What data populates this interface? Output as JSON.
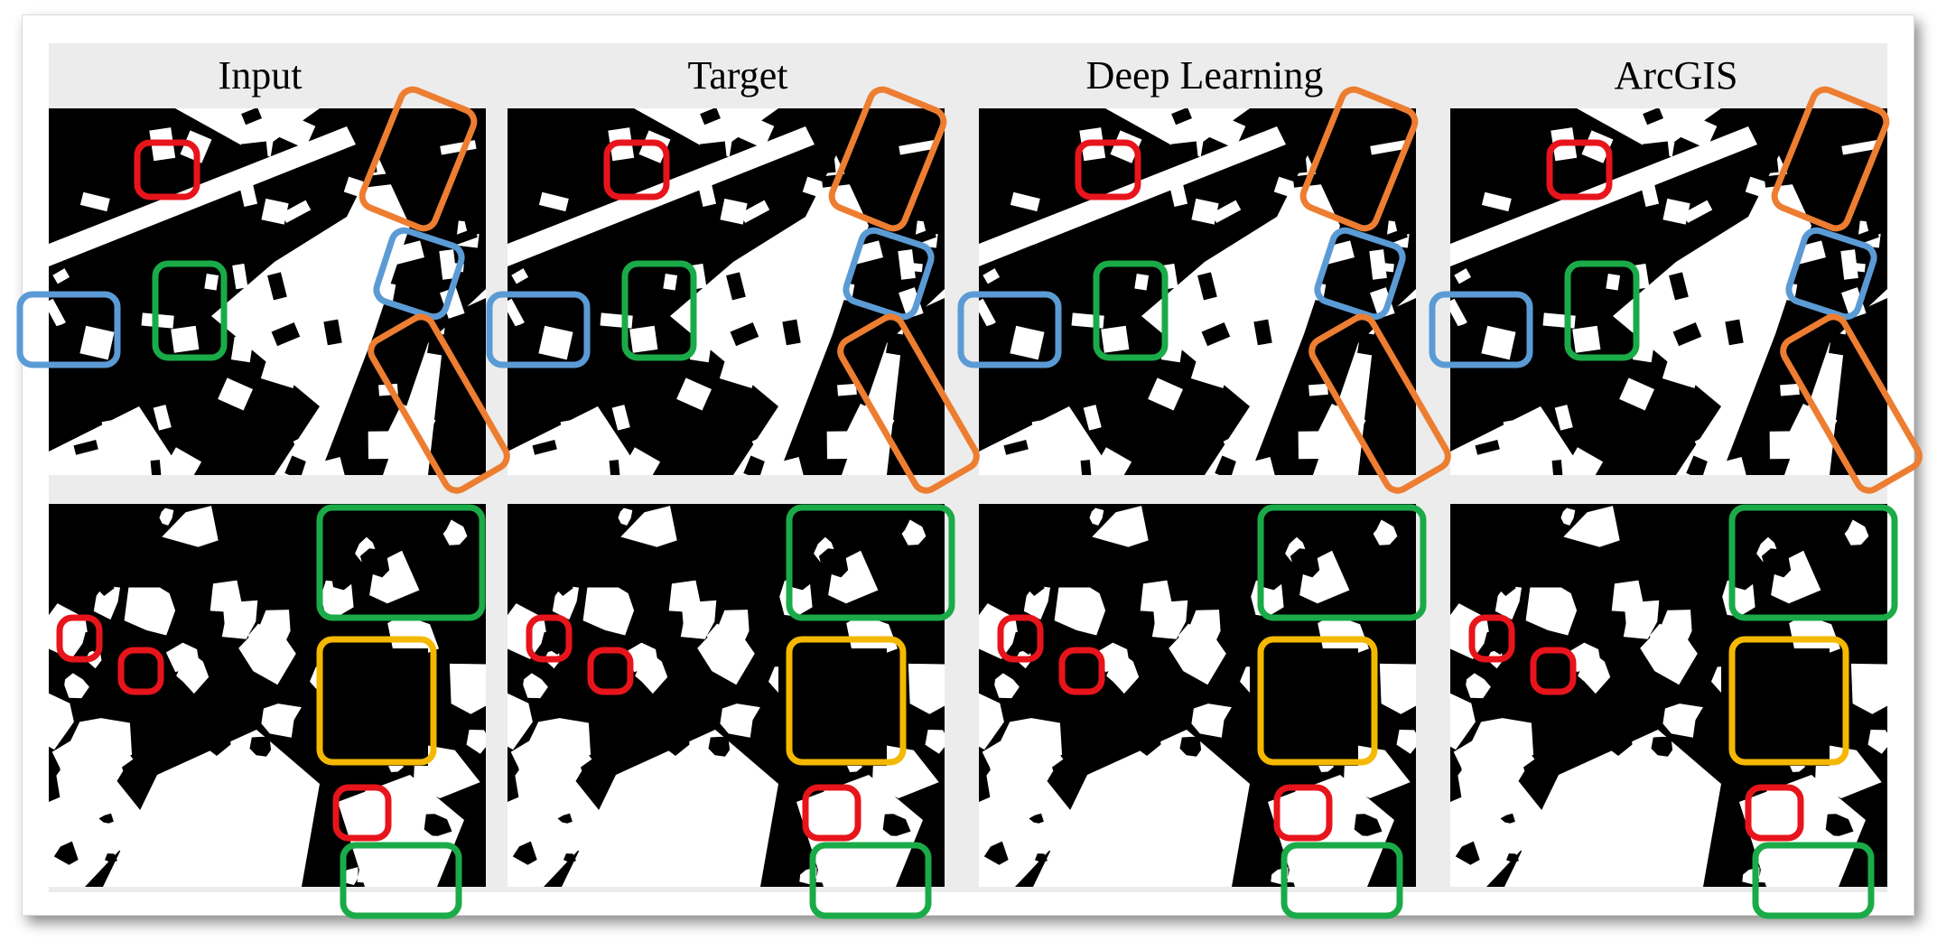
{
  "figure": {
    "column_headers": [
      "Input",
      "Target",
      "Deep Learning",
      "ArcGIS"
    ]
  },
  "highlight_colors": {
    "red": "#e8141b",
    "green": "#1aab48",
    "blue": "#5b9bd5",
    "orange": "#ed7d31",
    "yellow": "#f5b800"
  }
}
